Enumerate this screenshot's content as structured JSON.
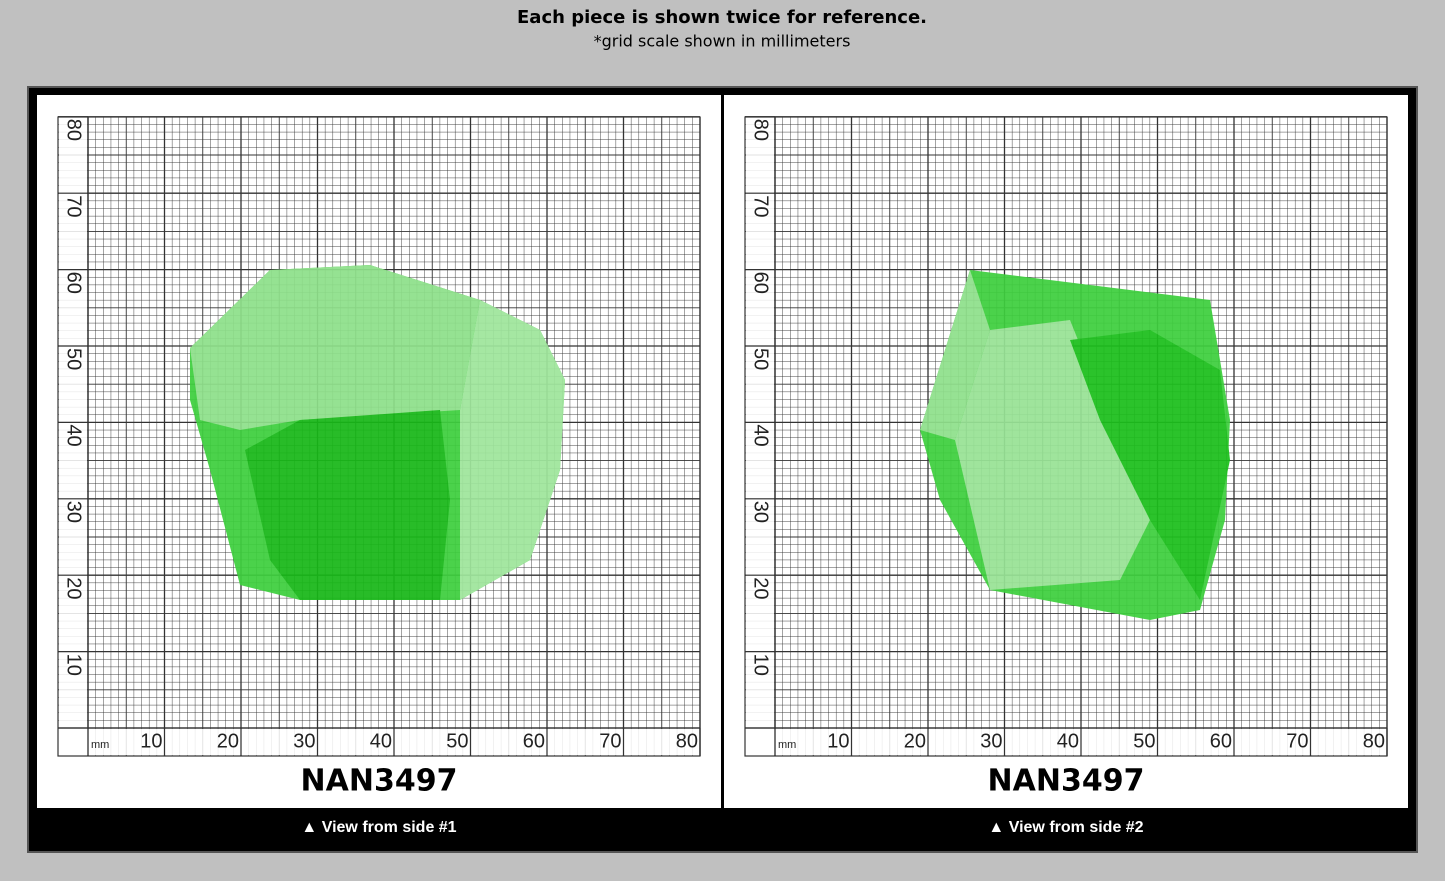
{
  "header": {
    "title": "Each piece is shown twice for reference.",
    "subtitle": "*grid scale shown in millimeters"
  },
  "scale": {
    "unit": "mm",
    "x_labels": [
      10,
      20,
      30,
      40,
      50,
      60,
      70,
      80
    ],
    "y_labels": [
      10,
      20,
      30,
      40,
      50,
      60,
      70,
      80
    ]
  },
  "panels": [
    {
      "id": "NAN3497",
      "caption": "▲ View from side #1"
    },
    {
      "id": "NAN3497",
      "caption": "▲ View from side #2"
    }
  ]
}
